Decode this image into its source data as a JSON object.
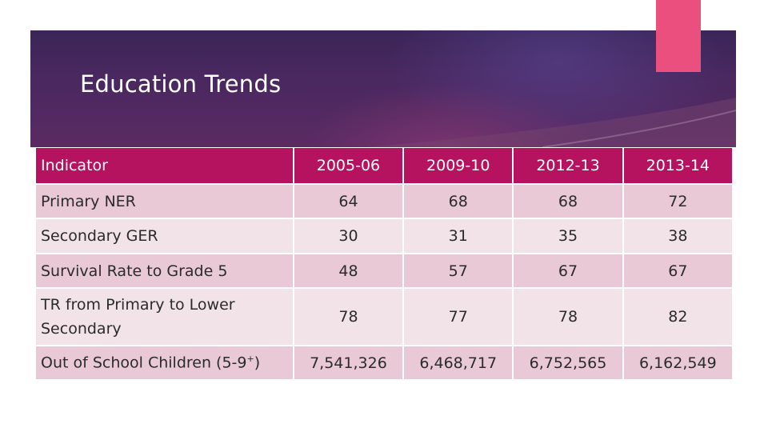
{
  "slide": {
    "title": "Education Trends"
  },
  "table": {
    "headers": [
      "Indicator",
      "2005-06",
      "2009-10",
      "2012-13",
      "2013-14"
    ],
    "rows": [
      {
        "indicator": "Primary NER",
        "values": [
          "64",
          "68",
          "68",
          "72"
        ]
      },
      {
        "indicator": "Secondary GER",
        "values": [
          "30",
          "31",
          "35",
          "38"
        ]
      },
      {
        "indicator": "Survival Rate to Grade 5",
        "values": [
          "48",
          "57",
          "67",
          "67"
        ]
      },
      {
        "indicator": "TR from Primary to Lower Secondary",
        "values": [
          "78",
          "77",
          "78",
          "82"
        ]
      },
      {
        "indicator_main": "Out of School Children (5-9",
        "indicator_sup": "+",
        "indicator_end": ")",
        "values": [
          "7,541,326",
          "6,468,717",
          "6,752,565",
          "6,162,549"
        ]
      }
    ]
  },
  "colors": {
    "header_bg": "#b5125f",
    "row_odd": "#e9c9d6",
    "row_even": "#f2e3e9",
    "accent": "#ea4f7e",
    "banner": "#4a2860"
  }
}
